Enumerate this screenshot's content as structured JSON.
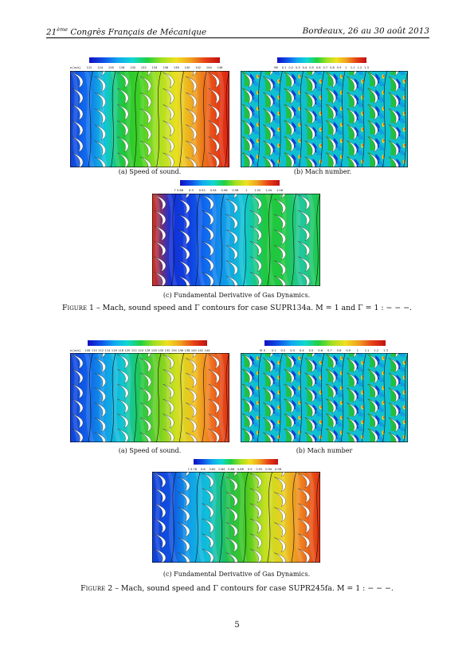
{
  "header": {
    "left_prefix": "21",
    "left_sup": "ème",
    "left_rest": " Congrès Français de Mécanique",
    "right": "Bordeaux, 26 au 30 août 2013"
  },
  "figure1": {
    "panels": {
      "a": {
        "caption": "(a) Speed of sound.",
        "unit_label": "a [m/s]",
        "ticks": [
          "122",
          "124",
          "126",
          "128",
          "130",
          "132",
          "134",
          "136",
          "138",
          "140",
          "142",
          "144",
          "146"
        ],
        "left_to_right_colors": [
          "#1040d8",
          "#1070f0",
          "#10c8d8",
          "#20c838",
          "#40d020",
          "#a8e020",
          "#e8e020",
          "#f0a020",
          "#e85018",
          "#e02010"
        ]
      },
      "b": {
        "caption": "(b) Mach number.",
        "unit_label": "M",
        "ticks": [
          "0",
          "0.1",
          "0.2",
          "0.3",
          "0.4",
          "0.5",
          "0.6",
          "0.7",
          "0.8",
          "0.9",
          "1",
          "1.1",
          "1.2",
          "1.3"
        ],
        "pattern_colors": [
          "#10c0d0",
          "#20c040",
          "#1040d8",
          "#10a0e0",
          "#f0d020",
          "#e04010"
        ]
      },
      "c": {
        "caption": "(c) Fundamental Derivative of Gas Dynamics.",
        "unit_label": "Γ",
        "ticks": [
          "0.88",
          "0.9",
          "0.92",
          "0.94",
          "0.96",
          "0.98",
          "1",
          "1.02",
          "1.04",
          "1.06"
        ],
        "left_to_right_colors": [
          "#e03010",
          "#1030d8",
          "#1040e0",
          "#1070f0",
          "#10a0e8",
          "#10c8d0",
          "#20c840",
          "#20c840",
          "#20c8a0",
          "#20c840"
        ]
      }
    },
    "caption_label": "Figure 1",
    "caption_text": " – Mach, sound speed and Γ contours for case SUPR134a. M = 1 and Γ = 1 : − − −."
  },
  "figure2": {
    "panels": {
      "a": {
        "caption": "(a) Speed of sound.",
        "unit_label": "a [m/s]",
        "ticks": [
          "108",
          "110",
          "112",
          "114",
          "116",
          "118",
          "120",
          "122",
          "124",
          "126",
          "128",
          "130",
          "132",
          "134",
          "136",
          "138",
          "140",
          "142",
          "144"
        ],
        "left_to_right_colors": [
          "#1040d8",
          "#1060e8",
          "#10a0e8",
          "#10c8d0",
          "#20c848",
          "#70d020",
          "#d0e020",
          "#f0c020",
          "#f07020",
          "#e03010"
        ]
      },
      "b": {
        "caption": "(b) Mach number",
        "unit_label": "M",
        "ticks": [
          "0",
          "0.1",
          "0.2",
          "0.3",
          "0.4",
          "0.5",
          "0.6",
          "0.7",
          "0.8",
          "0.9",
          "1",
          "1.1",
          "1.2",
          "1.3"
        ],
        "pattern_colors": [
          "#10c0d0",
          "#20c040",
          "#1040d8",
          "#10a0e0",
          "#f0d020",
          "#e04010"
        ]
      },
      "c": {
        "caption": "(c) Fundamental Derivative of Gas Dynamics.",
        "unit_label": "Γ",
        "ticks": [
          "0.78",
          "0.8",
          "0.82",
          "0.84",
          "0.86",
          "0.88",
          "0.9",
          "0.92",
          "0.94",
          "0.96"
        ],
        "left_to_right_colors": [
          "#1040d8",
          "#1050e0",
          "#10a0e8",
          "#10c0d8",
          "#20c050",
          "#40c820",
          "#c0e020",
          "#e8d020",
          "#f08020",
          "#e03010"
        ]
      }
    },
    "caption_label": "Figure 2",
    "caption_text": " – Mach, sound speed and Γ contours for case SUPR245fa. M = 1 : − − −."
  },
  "colorbar_gradient": [
    "#1010c0",
    "#1050e8",
    "#10a8f0",
    "#10d8d0",
    "#20d040",
    "#a0e020",
    "#f0e020",
    "#f0a020",
    "#e84018",
    "#c01010"
  ],
  "page_number": "5"
}
